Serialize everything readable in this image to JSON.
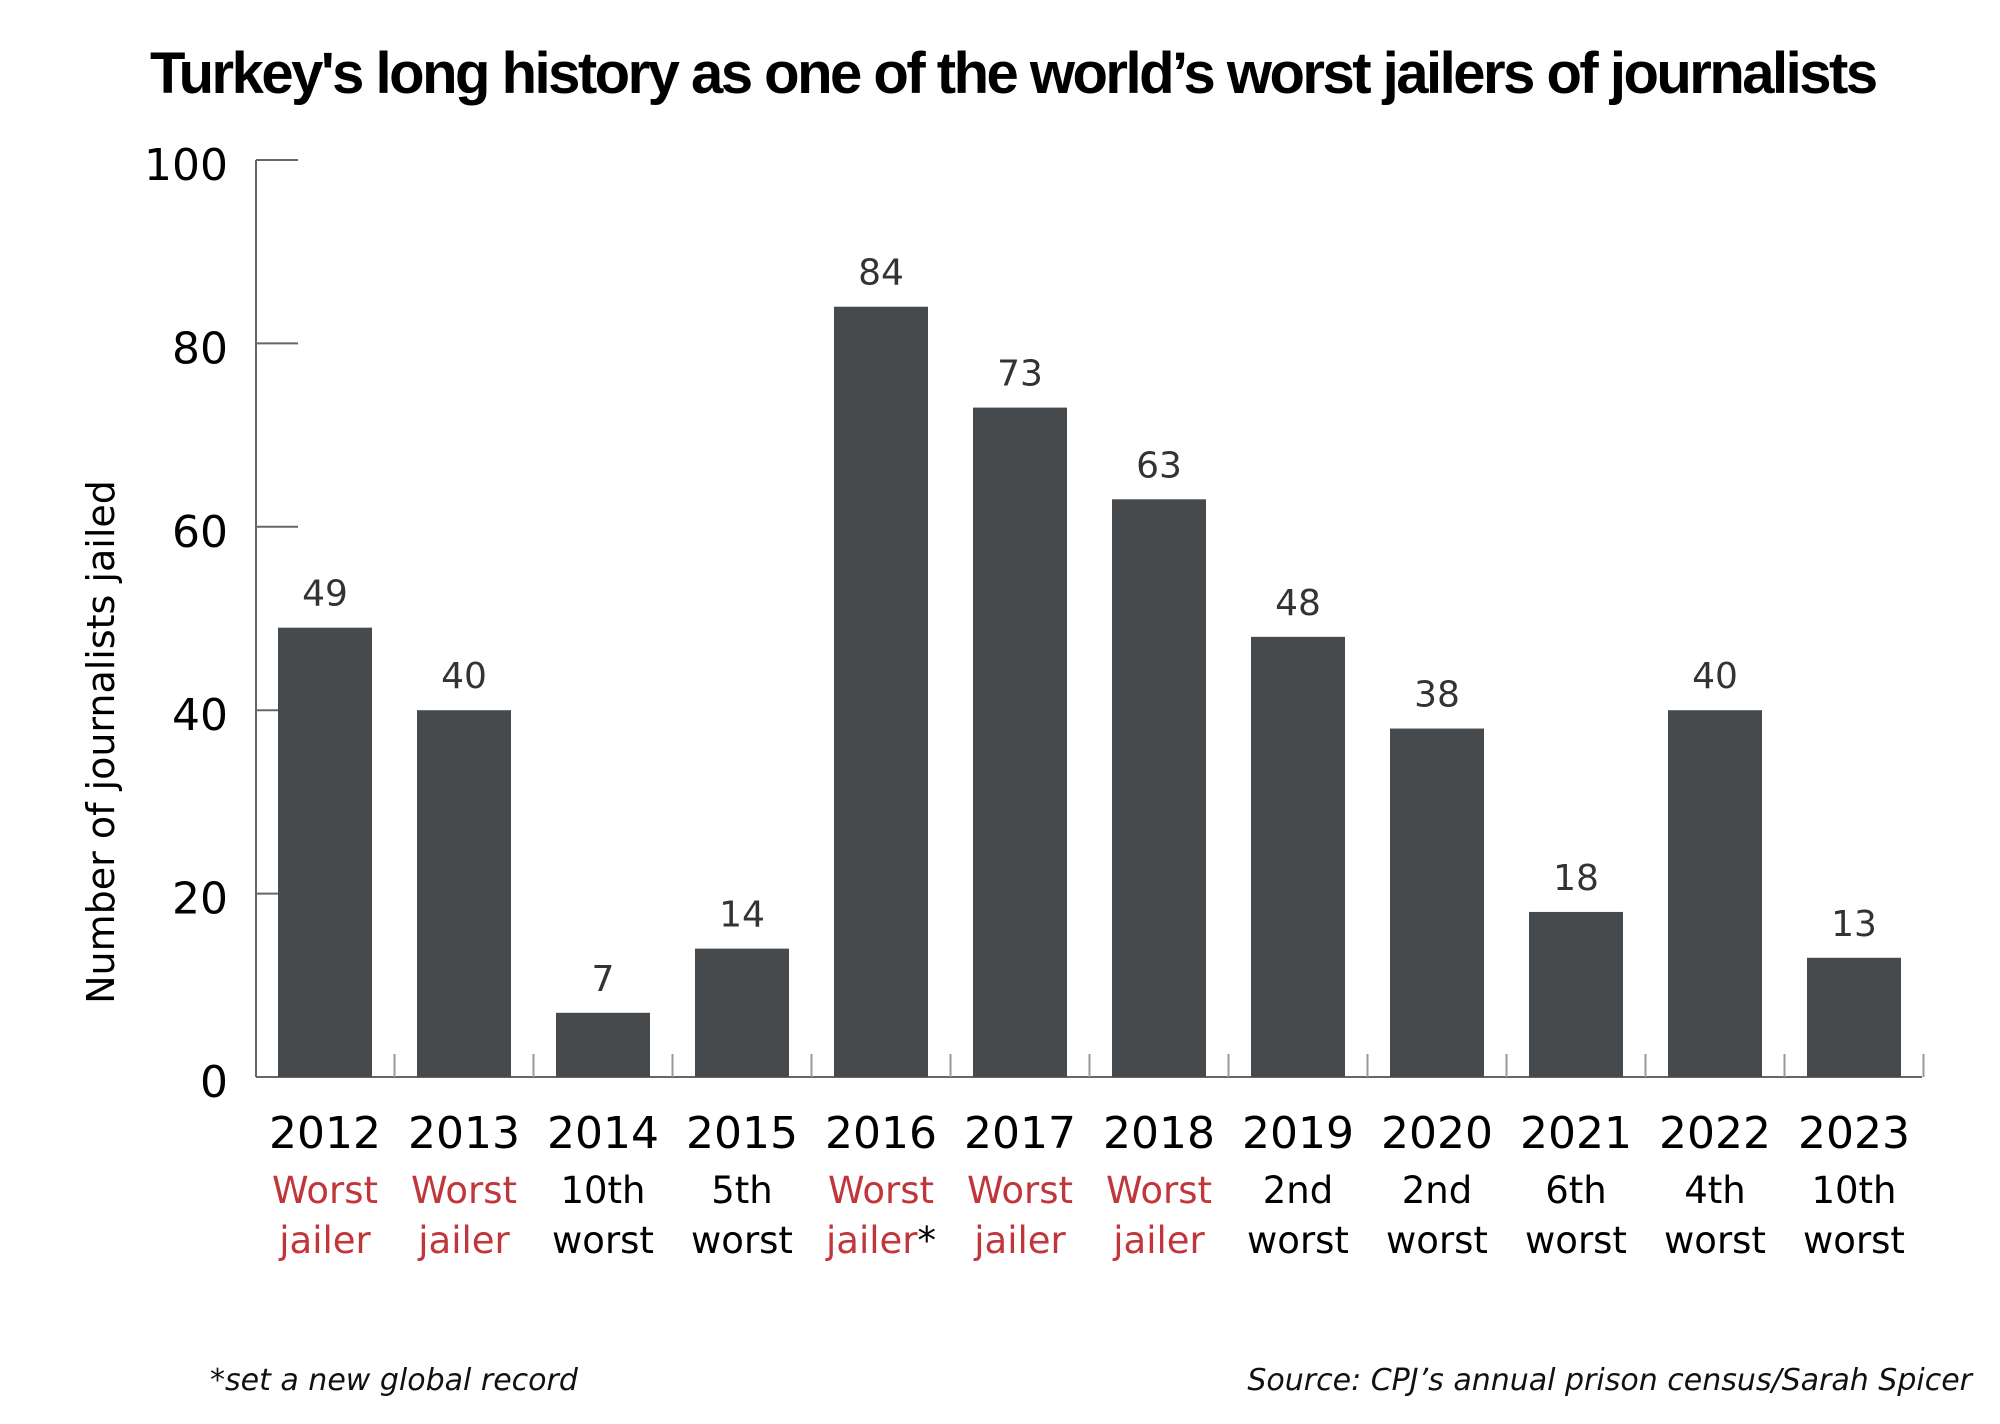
{
  "chart_data": {
    "type": "bar",
    "title": "Turkey's long history as one of the world’s worst jailers of journalists",
    "xlabel": "",
    "ylabel": "Number of journalists jailed",
    "ylim": [
      0,
      100
    ],
    "yticks": [
      0,
      20,
      40,
      60,
      80,
      100
    ],
    "grid": false,
    "categories": [
      "2012",
      "2013",
      "2014",
      "2015",
      "2016",
      "2017",
      "2018",
      "2019",
      "2020",
      "2021",
      "2022",
      "2023"
    ],
    "values": [
      49,
      40,
      7,
      14,
      84,
      73,
      63,
      48,
      38,
      18,
      40,
      13
    ],
    "rankings": [
      {
        "line1": "Worst",
        "line2": "jailer",
        "highlight": true
      },
      {
        "line1": "Worst",
        "line2": "jailer",
        "highlight": true
      },
      {
        "line1": "10th",
        "line2": "worst",
        "highlight": false
      },
      {
        "line1": "5th",
        "line2": "worst",
        "highlight": false
      },
      {
        "line1": "Worst",
        "line2": "jailer",
        "suffix": "*",
        "highlight": true
      },
      {
        "line1": "Worst",
        "line2": "jailer",
        "highlight": true
      },
      {
        "line1": "Worst",
        "line2": "jailer",
        "highlight": true
      },
      {
        "line1": "2nd",
        "line2": "worst",
        "highlight": false
      },
      {
        "line1": "2nd",
        "line2": "worst",
        "highlight": false
      },
      {
        "line1": "6th",
        "line2": "worst",
        "highlight": false
      },
      {
        "line1": "4th",
        "line2": "worst",
        "highlight": false
      },
      {
        "line1": "10th",
        "line2": "worst",
        "highlight": false
      }
    ],
    "footnote": "*set a new global record",
    "source": "Source: CPJ’s annual prison census/Sarah Spicer"
  },
  "colors": {
    "bar": "#474a4d",
    "highlight_text": "#c1363b",
    "normal_text": "#000000",
    "axis": "#666666"
  }
}
